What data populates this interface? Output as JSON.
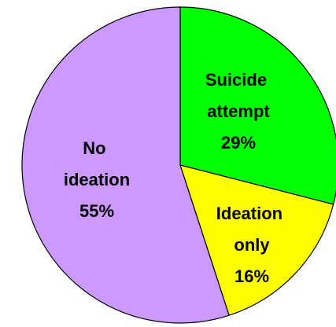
{
  "chart_data": {
    "type": "pie",
    "categories": [
      "Suicide attempt",
      "Ideation only",
      "No ideation"
    ],
    "values": [
      29,
      16,
      55
    ],
    "value_labels": [
      "29%",
      "16%",
      "55%"
    ],
    "colors": [
      "#00ff00",
      "#ffff00",
      "#cc99ff"
    ]
  }
}
